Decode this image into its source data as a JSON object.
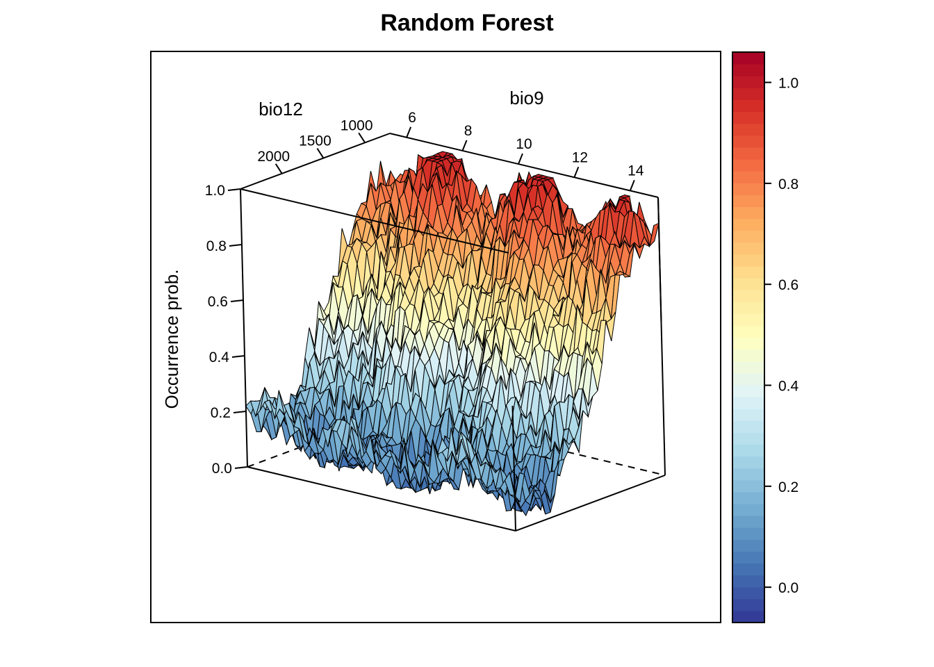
{
  "chart_data": {
    "type": "surface3d",
    "title": "Random Forest",
    "zlabel": "Occurrence prob.",
    "xlabel": "bio9",
    "ylabel": "bio12",
    "x_ticks": [
      "6",
      "8",
      "10",
      "12",
      "14"
    ],
    "x_tick_values": [
      6,
      8,
      10,
      12,
      14
    ],
    "xlim": [
      5.4,
      15.0
    ],
    "y_ticks": [
      "2000",
      "1500",
      "1000"
    ],
    "y_tick_values": [
      2000,
      1500,
      1000
    ],
    "ylim": [
      700,
      2500
    ],
    "z_ticks": [
      "0.0",
      "0.2",
      "0.4",
      "0.6",
      "0.8",
      "1.0"
    ],
    "z_tick_values": [
      0.0,
      0.2,
      0.4,
      0.6,
      0.8,
      1.0
    ],
    "zlim": [
      0,
      1
    ],
    "colorbar_ticks": [
      "0.0",
      "0.2",
      "0.4",
      "0.6",
      "0.8",
      "1.0"
    ],
    "colorbar_tick_values": [
      0.0,
      0.2,
      0.4,
      0.6,
      0.8,
      1.0
    ],
    "colorbar_range": [
      -0.07,
      1.06
    ],
    "colormap": [
      "#313695",
      "#4575b4",
      "#74add1",
      "#abd9e9",
      "#e0f3f8",
      "#ffffbf",
      "#fee090",
      "#fdae61",
      "#f46d43",
      "#d73027",
      "#a50026"
    ],
    "surface_profile_bio12": [
      {
        "bio12": 2500,
        "prob": 0.22
      },
      {
        "bio12": 2300,
        "prob": 0.12
      },
      {
        "bio12": 2100,
        "prob": 0.05
      },
      {
        "bio12": 1900,
        "prob": 0.15
      },
      {
        "bio12": 1700,
        "prob": 0.3
      },
      {
        "bio12": 1500,
        "prob": 0.45
      },
      {
        "bio12": 1300,
        "prob": 0.62
      },
      {
        "bio12": 1100,
        "prob": 0.8
      },
      {
        "bio12": 900,
        "prob": 0.9
      },
      {
        "bio12": 700,
        "prob": 0.92
      }
    ],
    "grid": false,
    "legend": "colorbar-right"
  }
}
